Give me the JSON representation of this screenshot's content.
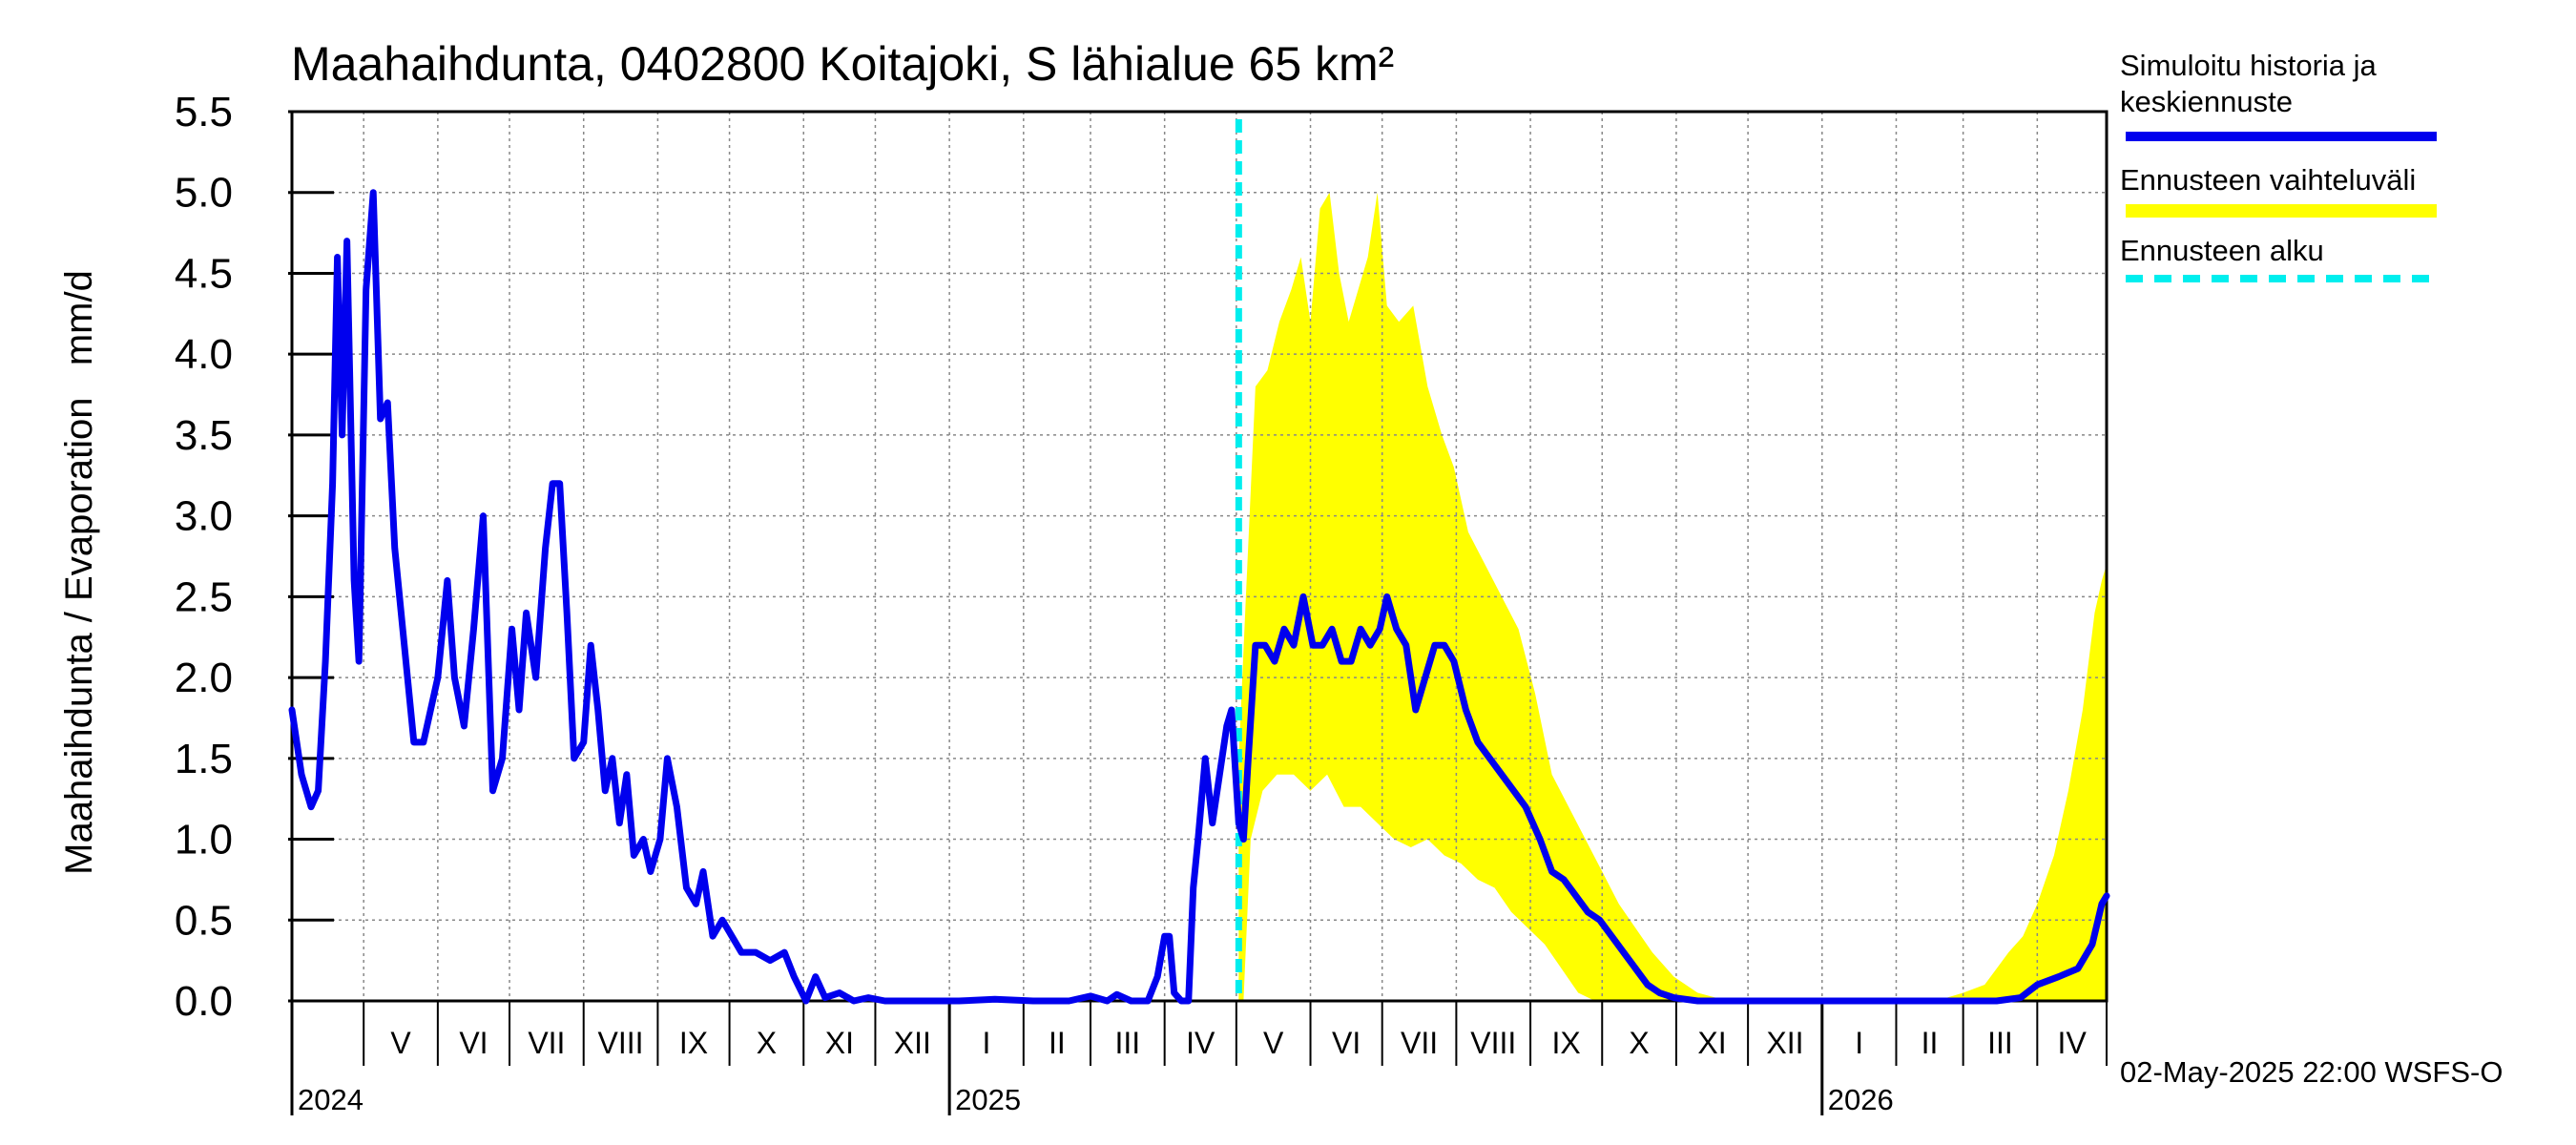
{
  "chart_data": {
    "type": "area",
    "title": "Maahaihdunta, 0402800 Koitajoki, S lähialue 65 km²",
    "ylabel": "Maahaihdunta / Evaporation   mm/d",
    "ylim": [
      0.0,
      5.5
    ],
    "y_ticks": [
      "0.0",
      "0.5",
      "1.0",
      "1.5",
      "2.0",
      "2.5",
      "3.0",
      "3.5",
      "4.0",
      "4.5",
      "5.0",
      "5.5"
    ],
    "x_range": [
      "2024-04-01",
      "2026-04-30"
    ],
    "month_labels": [
      {
        "label": "V",
        "start": "2024-05-01"
      },
      {
        "label": "VI",
        "start": "2024-06-01"
      },
      {
        "label": "VII",
        "start": "2024-07-01"
      },
      {
        "label": "VIII",
        "start": "2024-08-01"
      },
      {
        "label": "IX",
        "start": "2024-09-01"
      },
      {
        "label": "X",
        "start": "2024-10-01"
      },
      {
        "label": "XI",
        "start": "2024-11-01"
      },
      {
        "label": "XII",
        "start": "2024-12-01"
      },
      {
        "label": "I",
        "start": "2025-01-01"
      },
      {
        "label": "II",
        "start": "2025-02-01"
      },
      {
        "label": "III",
        "start": "2025-03-01"
      },
      {
        "label": "IV",
        "start": "2025-04-01"
      },
      {
        "label": "V",
        "start": "2025-05-01"
      },
      {
        "label": "VI",
        "start": "2025-06-01"
      },
      {
        "label": "VII",
        "start": "2025-07-01"
      },
      {
        "label": "VIII",
        "start": "2025-08-01"
      },
      {
        "label": "IX",
        "start": "2025-09-01"
      },
      {
        "label": "X",
        "start": "2025-10-01"
      },
      {
        "label": "XI",
        "start": "2025-11-01"
      },
      {
        "label": "XII",
        "start": "2025-12-01"
      },
      {
        "label": "I",
        "start": "2026-01-01"
      },
      {
        "label": "II",
        "start": "2026-02-01"
      },
      {
        "label": "III",
        "start": "2026-03-01"
      },
      {
        "label": "IV",
        "start": "2026-04-01"
      }
    ],
    "year_labels": [
      {
        "label": "2024",
        "date": "2024-04-01"
      },
      {
        "label": "2025",
        "date": "2025-01-01"
      },
      {
        "label": "2026",
        "date": "2026-01-01"
      }
    ],
    "forecast_start": "2025-05-02",
    "grid": true,
    "legend_position": "right",
    "colors": {
      "history": "#0000ee",
      "range": "#ffff00",
      "forecast_start": "#00eeee",
      "grid": "#888888"
    },
    "series": [
      {
        "name": "Simuloitu historia ja keskiennuste",
        "points": [
          [
            "2024-04-01",
            1.8
          ],
          [
            "2024-04-05",
            1.4
          ],
          [
            "2024-04-09",
            1.2
          ],
          [
            "2024-04-12",
            1.3
          ],
          [
            "2024-04-15",
            2.1
          ],
          [
            "2024-04-18",
            3.2
          ],
          [
            "2024-04-20",
            4.6
          ],
          [
            "2024-04-22",
            3.5
          ],
          [
            "2024-04-24",
            4.7
          ],
          [
            "2024-04-27",
            2.6
          ],
          [
            "2024-04-29",
            2.1
          ],
          [
            "2024-05-02",
            4.4
          ],
          [
            "2024-05-05",
            5.0
          ],
          [
            "2024-05-08",
            3.6
          ],
          [
            "2024-05-11",
            3.7
          ],
          [
            "2024-05-14",
            2.8
          ],
          [
            "2024-05-18",
            2.2
          ],
          [
            "2024-05-22",
            1.6
          ],
          [
            "2024-05-26",
            1.6
          ],
          [
            "2024-06-01",
            2.0
          ],
          [
            "2024-06-05",
            2.6
          ],
          [
            "2024-06-08",
            2.0
          ],
          [
            "2024-06-12",
            1.7
          ],
          [
            "2024-06-16",
            2.3
          ],
          [
            "2024-06-20",
            3.0
          ],
          [
            "2024-06-24",
            1.3
          ],
          [
            "2024-06-28",
            1.5
          ],
          [
            "2024-07-02",
            2.3
          ],
          [
            "2024-07-05",
            1.8
          ],
          [
            "2024-07-08",
            2.4
          ],
          [
            "2024-07-12",
            2.0
          ],
          [
            "2024-07-16",
            2.8
          ],
          [
            "2024-07-19",
            3.2
          ],
          [
            "2024-07-22",
            3.2
          ],
          [
            "2024-07-25",
            2.4
          ],
          [
            "2024-07-28",
            1.5
          ],
          [
            "2024-08-01",
            1.6
          ],
          [
            "2024-08-04",
            2.2
          ],
          [
            "2024-08-07",
            1.8
          ],
          [
            "2024-08-10",
            1.3
          ],
          [
            "2024-08-13",
            1.5
          ],
          [
            "2024-08-16",
            1.1
          ],
          [
            "2024-08-19",
            1.4
          ],
          [
            "2024-08-22",
            0.9
          ],
          [
            "2024-08-26",
            1.0
          ],
          [
            "2024-08-29",
            0.8
          ],
          [
            "2024-09-02",
            1.0
          ],
          [
            "2024-09-05",
            1.5
          ],
          [
            "2024-09-09",
            1.2
          ],
          [
            "2024-09-13",
            0.7
          ],
          [
            "2024-09-17",
            0.6
          ],
          [
            "2024-09-20",
            0.8
          ],
          [
            "2024-09-24",
            0.4
          ],
          [
            "2024-09-28",
            0.5
          ],
          [
            "2024-10-02",
            0.4
          ],
          [
            "2024-10-06",
            0.3
          ],
          [
            "2024-10-12",
            0.3
          ],
          [
            "2024-10-18",
            0.25
          ],
          [
            "2024-10-24",
            0.3
          ],
          [
            "2024-10-28",
            0.15
          ],
          [
            "2024-11-02",
            0.0
          ],
          [
            "2024-11-06",
            0.15
          ],
          [
            "2024-11-10",
            0.02
          ],
          [
            "2024-11-16",
            0.05
          ],
          [
            "2024-11-22",
            0.0
          ],
          [
            "2024-11-28",
            0.02
          ],
          [
            "2024-12-05",
            0.0
          ],
          [
            "2024-12-20",
            0.0
          ],
          [
            "2025-01-05",
            0.0
          ],
          [
            "2025-01-20",
            0.01
          ],
          [
            "2025-02-05",
            0.0
          ],
          [
            "2025-02-20",
            0.0
          ],
          [
            "2025-03-01",
            0.03
          ],
          [
            "2025-03-08",
            0.0
          ],
          [
            "2025-03-12",
            0.04
          ],
          [
            "2025-03-18",
            0.0
          ],
          [
            "2025-03-25",
            0.0
          ],
          [
            "2025-03-29",
            0.15
          ],
          [
            "2025-04-01",
            0.4
          ],
          [
            "2025-04-03",
            0.4
          ],
          [
            "2025-04-05",
            0.05
          ],
          [
            "2025-04-08",
            0.0
          ],
          [
            "2025-04-11",
            0.0
          ],
          [
            "2025-04-13",
            0.7
          ],
          [
            "2025-04-15",
            1.0
          ],
          [
            "2025-04-18",
            1.5
          ],
          [
            "2025-04-21",
            1.1
          ],
          [
            "2025-04-24",
            1.4
          ],
          [
            "2025-04-27",
            1.7
          ],
          [
            "2025-04-29",
            1.8
          ],
          [
            "2025-05-02",
            1.1
          ],
          [
            "2025-05-04",
            1.0
          ],
          [
            "2025-05-06",
            1.5
          ],
          [
            "2025-05-09",
            2.2
          ],
          [
            "2025-05-13",
            2.2
          ],
          [
            "2025-05-17",
            2.1
          ],
          [
            "2025-05-21",
            2.3
          ],
          [
            "2025-05-25",
            2.2
          ],
          [
            "2025-05-29",
            2.5
          ],
          [
            "2025-06-02",
            2.2
          ],
          [
            "2025-06-06",
            2.2
          ],
          [
            "2025-06-10",
            2.3
          ],
          [
            "2025-06-14",
            2.1
          ],
          [
            "2025-06-18",
            2.1
          ],
          [
            "2025-06-22",
            2.3
          ],
          [
            "2025-06-26",
            2.2
          ],
          [
            "2025-06-30",
            2.3
          ],
          [
            "2025-07-03",
            2.5
          ],
          [
            "2025-07-07",
            2.3
          ],
          [
            "2025-07-11",
            2.2
          ],
          [
            "2025-07-15",
            1.8
          ],
          [
            "2025-07-19",
            2.0
          ],
          [
            "2025-07-23",
            2.2
          ],
          [
            "2025-07-27",
            2.2
          ],
          [
            "2025-07-31",
            2.1
          ],
          [
            "2025-08-05",
            1.8
          ],
          [
            "2025-08-10",
            1.6
          ],
          [
            "2025-08-15",
            1.5
          ],
          [
            "2025-08-20",
            1.4
          ],
          [
            "2025-08-25",
            1.3
          ],
          [
            "2025-08-30",
            1.2
          ],
          [
            "2025-09-05",
            1.0
          ],
          [
            "2025-09-10",
            0.8
          ],
          [
            "2025-09-15",
            0.75
          ],
          [
            "2025-09-20",
            0.65
          ],
          [
            "2025-09-25",
            0.55
          ],
          [
            "2025-09-30",
            0.5
          ],
          [
            "2025-10-05",
            0.4
          ],
          [
            "2025-10-10",
            0.3
          ],
          [
            "2025-10-15",
            0.2
          ],
          [
            "2025-10-20",
            0.1
          ],
          [
            "2025-10-25",
            0.05
          ],
          [
            "2025-10-31",
            0.02
          ],
          [
            "2025-11-10",
            0.0
          ],
          [
            "2025-12-01",
            0.0
          ],
          [
            "2026-01-01",
            0.0
          ],
          [
            "2026-02-01",
            0.0
          ],
          [
            "2026-03-01",
            0.0
          ],
          [
            "2026-03-15",
            0.0
          ],
          [
            "2026-03-25",
            0.02
          ],
          [
            "2026-04-01",
            0.1
          ],
          [
            "2026-04-10",
            0.15
          ],
          [
            "2026-04-18",
            0.2
          ],
          [
            "2026-04-24",
            0.35
          ],
          [
            "2026-04-28",
            0.6
          ],
          [
            "2026-04-30",
            0.65
          ]
        ]
      },
      {
        "name": "Ennusteen vaihteluväli",
        "upper": [
          [
            "2025-05-02",
            1.5
          ],
          [
            "2025-05-05",
            2.5
          ],
          [
            "2025-05-09",
            3.8
          ],
          [
            "2025-05-14",
            3.9
          ],
          [
            "2025-05-19",
            4.2
          ],
          [
            "2025-05-24",
            4.4
          ],
          [
            "2025-05-28",
            4.6
          ],
          [
            "2025-06-01",
            4.2
          ],
          [
            "2025-06-05",
            4.9
          ],
          [
            "2025-06-09",
            5.0
          ],
          [
            "2025-06-13",
            4.5
          ],
          [
            "2025-06-17",
            4.2
          ],
          [
            "2025-06-21",
            4.4
          ],
          [
            "2025-06-25",
            4.6
          ],
          [
            "2025-06-29",
            5.0
          ],
          [
            "2025-07-03",
            4.3
          ],
          [
            "2025-07-08",
            4.2
          ],
          [
            "2025-07-14",
            4.3
          ],
          [
            "2025-07-20",
            3.8
          ],
          [
            "2025-07-26",
            3.5
          ],
          [
            "2025-07-31",
            3.3
          ],
          [
            "2025-08-06",
            2.9
          ],
          [
            "2025-08-13",
            2.7
          ],
          [
            "2025-08-20",
            2.5
          ],
          [
            "2025-08-27",
            2.3
          ],
          [
            "2025-09-03",
            1.9
          ],
          [
            "2025-09-10",
            1.4
          ],
          [
            "2025-09-17",
            1.2
          ],
          [
            "2025-09-24",
            1.0
          ],
          [
            "2025-10-01",
            0.8
          ],
          [
            "2025-10-08",
            0.6
          ],
          [
            "2025-10-15",
            0.45
          ],
          [
            "2025-10-22",
            0.3
          ],
          [
            "2025-10-31",
            0.15
          ],
          [
            "2025-11-10",
            0.05
          ],
          [
            "2025-11-20",
            0.01
          ],
          [
            "2026-02-20",
            0.01
          ],
          [
            "2026-03-01",
            0.05
          ],
          [
            "2026-03-10",
            0.1
          ],
          [
            "2026-03-20",
            0.3
          ],
          [
            "2026-03-26",
            0.4
          ],
          [
            "2026-04-01",
            0.6
          ],
          [
            "2026-04-08",
            0.9
          ],
          [
            "2026-04-14",
            1.3
          ],
          [
            "2026-04-20",
            1.8
          ],
          [
            "2026-04-25",
            2.4
          ],
          [
            "2026-04-28",
            2.6
          ],
          [
            "2026-04-30",
            2.7
          ]
        ],
        "lower": [
          [
            "2025-05-02",
            0.0
          ],
          [
            "2025-05-04",
            0.0
          ],
          [
            "2025-05-07",
            1.0
          ],
          [
            "2025-05-12",
            1.3
          ],
          [
            "2025-05-18",
            1.4
          ],
          [
            "2025-05-25",
            1.4
          ],
          [
            "2025-06-01",
            1.3
          ],
          [
            "2025-06-08",
            1.4
          ],
          [
            "2025-06-15",
            1.2
          ],
          [
            "2025-06-22",
            1.2
          ],
          [
            "2025-06-29",
            1.1
          ],
          [
            "2025-07-06",
            1.0
          ],
          [
            "2025-07-13",
            0.95
          ],
          [
            "2025-07-20",
            1.0
          ],
          [
            "2025-07-27",
            0.9
          ],
          [
            "2025-08-03",
            0.85
          ],
          [
            "2025-08-10",
            0.75
          ],
          [
            "2025-08-17",
            0.7
          ],
          [
            "2025-08-24",
            0.55
          ],
          [
            "2025-08-31",
            0.45
          ],
          [
            "2025-09-07",
            0.35
          ],
          [
            "2025-09-14",
            0.2
          ],
          [
            "2025-09-21",
            0.05
          ],
          [
            "2025-09-28",
            0.0
          ],
          [
            "2026-04-30",
            0.0
          ]
        ]
      },
      {
        "name": "Ennusteen alku"
      }
    ]
  },
  "legend": {
    "history_label": "Simuloitu historia ja keskiennuste",
    "range_label": "Ennusteen vaihteluväli",
    "start_label": "Ennusteen alku"
  },
  "footer": {
    "timestamp": "02-May-2025 22:00 WSFS-O"
  }
}
